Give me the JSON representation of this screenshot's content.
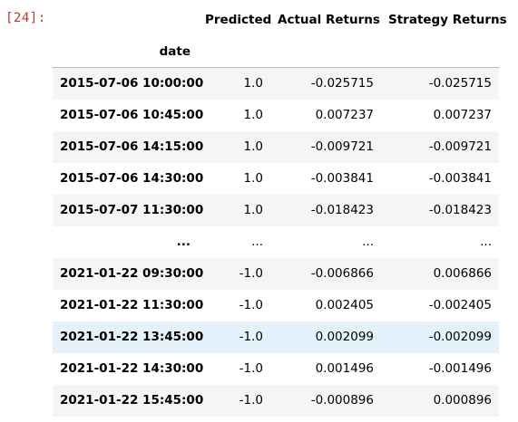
{
  "cell": {
    "prompt": "[24]:"
  },
  "dataframe": {
    "columns": [
      "Predicted",
      "Actual Returns",
      "Strategy Returns"
    ],
    "index_name": "date",
    "rows": [
      {
        "date": "2015-07-06 10:00:00",
        "predicted": "1.0",
        "actual": "-0.025715",
        "strategy": "-0.025715"
      },
      {
        "date": "2015-07-06 10:45:00",
        "predicted": "1.0",
        "actual": "0.007237",
        "strategy": "0.007237"
      },
      {
        "date": "2015-07-06 14:15:00",
        "predicted": "1.0",
        "actual": "-0.009721",
        "strategy": "-0.009721"
      },
      {
        "date": "2015-07-06 14:30:00",
        "predicted": "1.0",
        "actual": "-0.003841",
        "strategy": "-0.003841"
      },
      {
        "date": "2015-07-07 11:30:00",
        "predicted": "1.0",
        "actual": "-0.018423",
        "strategy": "-0.018423"
      },
      {
        "date": "...",
        "predicted": "...",
        "actual": "...",
        "strategy": "..."
      },
      {
        "date": "2021-01-22 09:30:00",
        "predicted": "-1.0",
        "actual": "-0.006866",
        "strategy": "0.006866"
      },
      {
        "date": "2021-01-22 11:30:00",
        "predicted": "-1.0",
        "actual": "0.002405",
        "strategy": "-0.002405"
      },
      {
        "date": "2021-01-22 13:45:00",
        "predicted": "-1.0",
        "actual": "0.002099",
        "strategy": "-0.002099"
      },
      {
        "date": "2021-01-22 14:30:00",
        "predicted": "-1.0",
        "actual": "0.001496",
        "strategy": "-0.001496"
      },
      {
        "date": "2021-01-22 15:45:00",
        "predicted": "-1.0",
        "actual": "-0.000896",
        "strategy": "0.000896"
      }
    ],
    "hovered_row": 8,
    "colors": {
      "prompt": "#c0392b",
      "row_stripe": "#f5f5f5",
      "row_hover": "#e3f2fb"
    }
  }
}
